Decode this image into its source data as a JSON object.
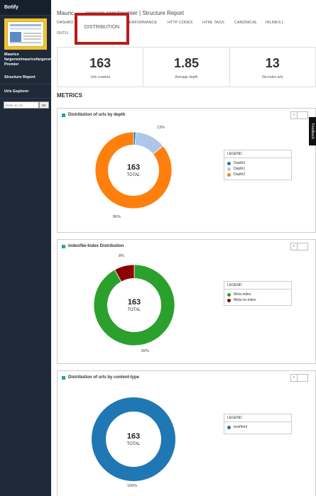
{
  "sidebar": {
    "brand": "Botify",
    "site_name": "Maurice fargeron/mauricefargeron.com Premier",
    "nav": [
      "Structure Report",
      "Urls Explorer"
    ],
    "url_input_placeholder": "Enter an url...",
    "url_ok": "OK"
  },
  "header": {
    "title": "Mauric... ...argeron.com/premier | Structure Report",
    "tabs_row1": [
      {
        "label": "DASHBO"
      },
      {
        "label": "ERFORMANCE"
      },
      {
        "label": "HTTP CODES"
      },
      {
        "label": "HTML TAGS"
      },
      {
        "label": "CANONICAL"
      },
      {
        "label": "INLINKS |"
      }
    ],
    "tabs_row2": [
      {
        "label": "OUTLI"
      }
    ],
    "active_tab": "DISTRIBUTION"
  },
  "stats": [
    {
      "value": "163",
      "label": "Urls crawled"
    },
    {
      "value": "1.85",
      "label": "Average depth"
    },
    {
      "value": "13",
      "label": "No-index urls"
    }
  ],
  "metrics_heading": "METRICS",
  "panels": [
    {
      "title": "Distribution of urls by depth",
      "total": "163",
      "total_label": "TOTAL",
      "legend_title": "LEGEND",
      "slices": [
        {
          "name": "Depth0",
          "value": 1,
          "color": "#1f77b4"
        },
        {
          "name": "Depth1",
          "value": 13,
          "color": "#aec7e8",
          "pct_label": "13%"
        },
        {
          "name": "Depth2",
          "value": 86,
          "color": "#ff7f0e",
          "pct_label": "86%"
        }
      ]
    },
    {
      "title": "Index/No-Index Distribution",
      "total": "163",
      "total_label": "TOTAL",
      "legend_title": "LEGEND",
      "slices": [
        {
          "name": "Meta index",
          "value": 92,
          "color": "#2ca02c",
          "pct_label": "92%"
        },
        {
          "name": "Meta no-index",
          "value": 8,
          "color": "#8b0000",
          "pct_label": "8%"
        }
      ]
    },
    {
      "title": "Distribution of urls by content-type",
      "total": "163",
      "total_label": "TOTAL",
      "legend_title": "LEGEND",
      "slices": [
        {
          "name": "text/html",
          "value": 100,
          "color": "#1f77b4",
          "pct_label": "100%"
        }
      ]
    }
  ],
  "feedback_label": "Feedback"
}
